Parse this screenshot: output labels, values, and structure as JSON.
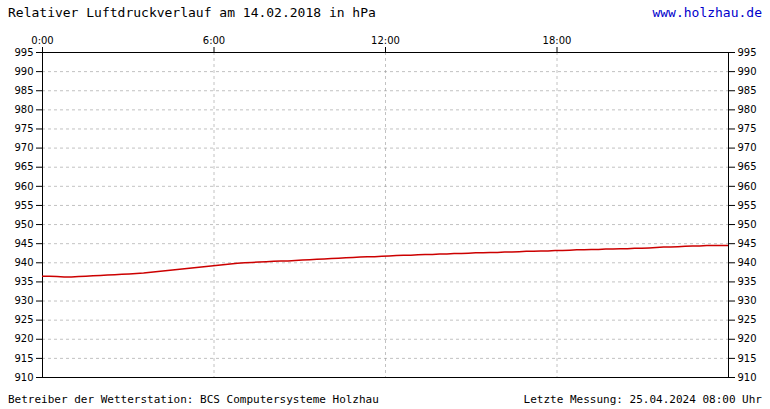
{
  "chart_data": {
    "type": "line",
    "title": "Relativer Luftdruckverlauf am 14.02.2018 in hPa",
    "annotations": [
      {
        "text": "www.holzhau.de",
        "color": "#0000cc"
      },
      {
        "text": "Betreiber der Wetterstation: BCS Computersysteme Holzhau"
      },
      {
        "text": "Letzte Messung: 25.04.2024 08:00 Uhr"
      }
    ],
    "x": [
      0,
      15.1579,
      30.3158,
      45.4737,
      60.6316,
      75.7895,
      90.9474,
      106.1053,
      121.2632,
      136.4211,
      151.5789,
      166.7368,
      181.8947,
      197.0526,
      212.2105,
      227.3684,
      242.5263,
      257.6842,
      272.8421,
      288,
      303.1579,
      318.3158,
      333.4737,
      348.6316,
      363.7895,
      378.9474,
      394.1053,
      409.2632,
      424.4211,
      439.5789,
      454.7368,
      469.8947,
      485.0526,
      500.2105,
      515.3684,
      530.5263,
      545.6842,
      560.8421,
      576,
      591.1579,
      606.3158,
      621.4737,
      636.6316,
      651.7895,
      666.9474,
      682.1053,
      697.2632,
      712.4211,
      727.5789,
      742.7368,
      757.8947,
      773.0526,
      788.2105,
      803.3684,
      818.5263,
      833.6842,
      848.8421,
      864,
      879.1579,
      894.3158,
      909.4737,
      924.6316,
      939.7895,
      954.9474,
      970.1053,
      985.2632,
      1000.4211,
      1015.5789,
      1030.7368,
      1045.8947,
      1061.0526,
      1076.2105,
      1091.3684,
      1106.5263,
      1121.6842,
      1136.8421,
      1152,
      1167.1579,
      1182.3158,
      1197.4737,
      1212.6316,
      1227.7895,
      1242.9474,
      1258.1053,
      1273.2632,
      1288.4211,
      1303.5789,
      1318.7368,
      1333.8947,
      1349.0526,
      1364.2105,
      1379.3684,
      1394.5263,
      1409.6842,
      1424.8421,
      1440
    ],
    "values": [
      936.5,
      936.5,
      936.4,
      936.3,
      936.3,
      936.4,
      936.5,
      936.6,
      936.7,
      936.8,
      936.9,
      937.0,
      937.1,
      937.2,
      937.3,
      937.5,
      937.7,
      937.9,
      938.1,
      938.3,
      938.5,
      938.7,
      938.9,
      939.1,
      939.3,
      939.5,
      939.7,
      939.9,
      940.0,
      940.1,
      940.2,
      940.3,
      940.4,
      940.5,
      940.5,
      940.6,
      940.7,
      940.8,
      940.9,
      941.0,
      941.1,
      941.2,
      941.3,
      941.4,
      941.5,
      941.6,
      941.6,
      941.7,
      941.8,
      941.9,
      942.0,
      942.0,
      942.1,
      942.2,
      942.2,
      942.3,
      942.3,
      942.4,
      942.4,
      942.5,
      942.6,
      942.6,
      942.7,
      942.7,
      942.8,
      942.8,
      942.9,
      943.0,
      943.0,
      943.1,
      943.1,
      943.2,
      943.2,
      943.3,
      943.4,
      943.4,
      943.5,
      943.5,
      943.6,
      943.6,
      943.7,
      943.7,
      943.8,
      943.8,
      943.9,
      944.0,
      944.1,
      944.1,
      944.2,
      944.3,
      944.4,
      944.4,
      944.5,
      944.5,
      944.5,
      944.5
    ],
    "color": "#cc0000",
    "xlim": [
      0,
      1440
    ],
    "xticks": [
      {
        "value": 0,
        "label": "0:00"
      },
      {
        "value": 360,
        "label": "6:00"
      },
      {
        "value": 720,
        "label": "12:00"
      },
      {
        "value": 1080,
        "label": "18:00"
      }
    ],
    "ylim": [
      910,
      995
    ],
    "yticks": [
      910,
      915,
      920,
      925,
      930,
      935,
      940,
      945,
      950,
      955,
      960,
      965,
      970,
      975,
      980,
      985,
      990,
      995
    ],
    "grid": true
  }
}
